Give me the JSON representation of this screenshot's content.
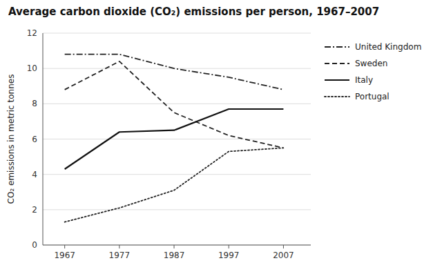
{
  "chart_data": {
    "type": "line",
    "title": "Average carbon dioxide (CO₂) emissions per person, 1967–2007",
    "ylabel": "CO₂ emissions in metric tonnes",
    "x": [
      1967,
      1977,
      1987,
      1997,
      2007
    ],
    "series": [
      {
        "name": "United Kingdom",
        "color": "#222222",
        "line_style": "dashdot",
        "values": [
          10.8,
          10.8,
          10.0,
          9.5,
          8.8
        ]
      },
      {
        "name": "Sweden",
        "color": "#222222",
        "line_style": "dashed",
        "values": [
          8.8,
          10.4,
          7.5,
          6.2,
          5.5
        ]
      },
      {
        "name": "Italy",
        "color": "#111111",
        "line_style": "solid",
        "values": [
          4.3,
          6.4,
          6.5,
          7.7,
          7.7
        ]
      },
      {
        "name": "Portugal",
        "color": "#222222",
        "line_style": "dotted",
        "values": [
          1.3,
          2.1,
          3.1,
          5.3,
          5.5
        ]
      }
    ],
    "xlim": [
      1963,
      2012
    ],
    "ylim": [
      0,
      12
    ],
    "xticks": [
      1967,
      1977,
      1987,
      1997,
      2007
    ],
    "yticks": [
      0,
      2,
      4,
      6,
      8,
      10,
      12
    ],
    "grid": true,
    "legend": "right"
  }
}
